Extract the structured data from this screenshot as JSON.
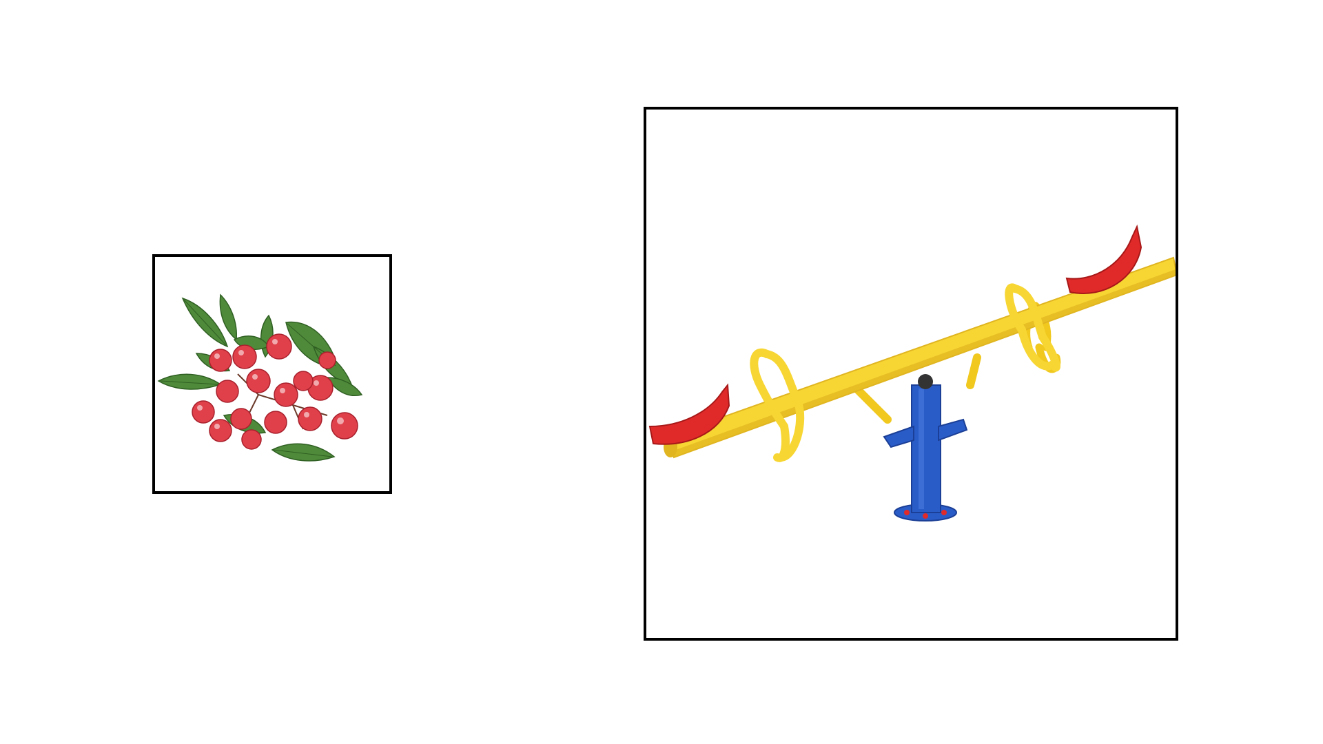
{
  "canvas": {
    "background": "#ffffff"
  },
  "frames": {
    "border_color": "#000000",
    "left": {
      "icon": "berries-cluster-icon",
      "colors": {
        "berry": "#e0404a",
        "berry_dark": "#a8202c",
        "leaf": "#4f8a3a",
        "leaf_dark": "#2f5f22"
      }
    },
    "right": {
      "icon": "seesaw-icon",
      "colors": {
        "beam": "#f7d633",
        "beam_shade": "#e0b520",
        "seat": "#e02a2a",
        "post": "#2a5cc8",
        "post_dark": "#1b3f96"
      }
    }
  }
}
